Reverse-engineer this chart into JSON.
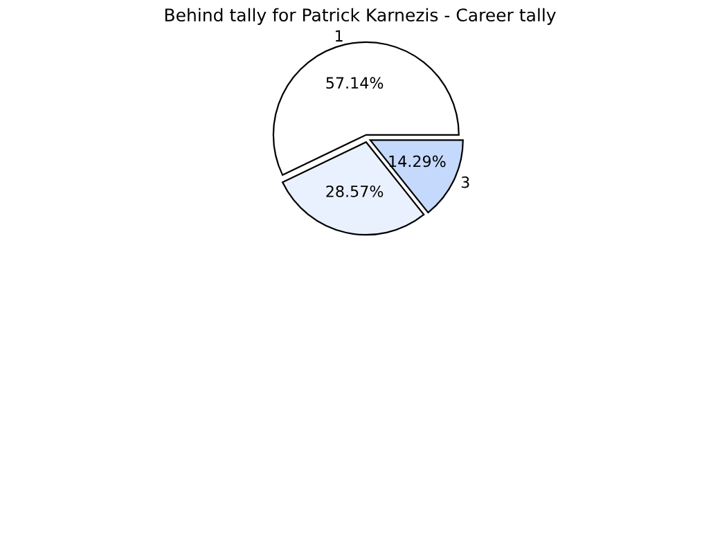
{
  "chart_data": {
    "type": "pie",
    "title": "Behind tally for Patrick Karnezis - Career tally",
    "categories": [
      "1",
      null,
      "3"
    ],
    "values": [
      57.14,
      28.57,
      14.29
    ],
    "colors": [
      "#ffffff",
      "#eaf1fe",
      "#c5d9fd"
    ],
    "value_labels": [
      "57.14%",
      "28.57%",
      "14.29%"
    ],
    "legend": false
  }
}
